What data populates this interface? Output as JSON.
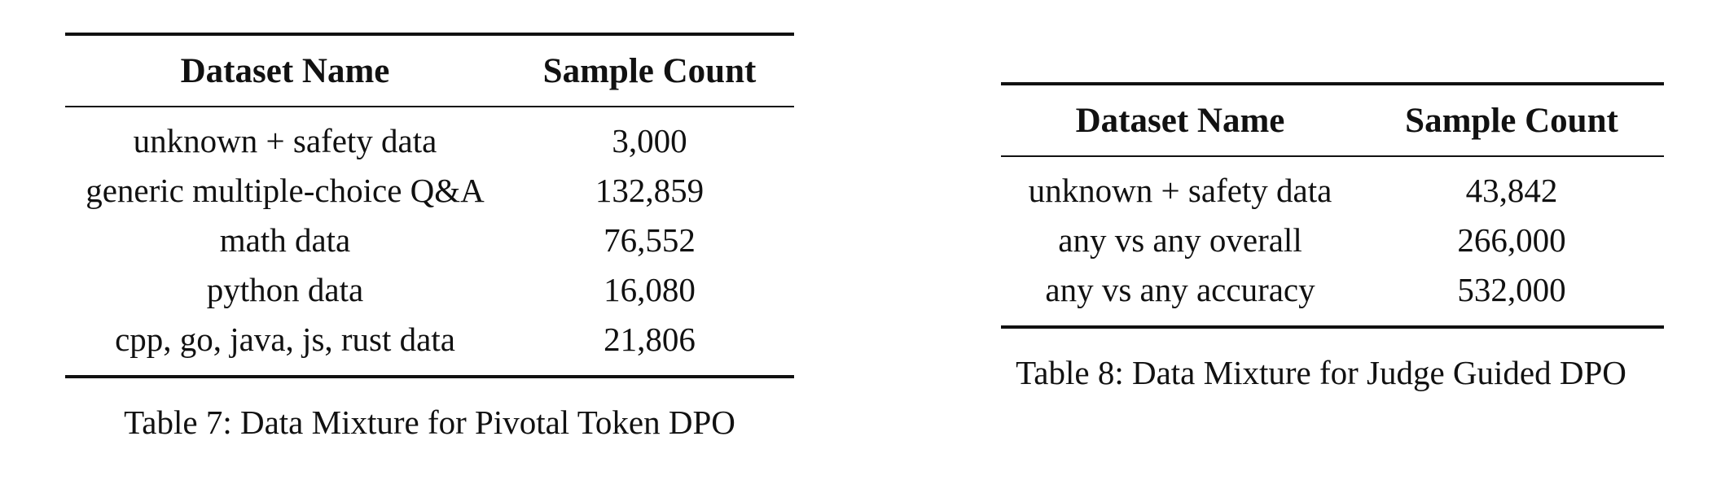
{
  "tables": [
    {
      "headers": [
        "Dataset Name",
        "Sample Count"
      ],
      "rows": [
        [
          "unknown + safety data",
          "3,000"
        ],
        [
          "generic multiple-choice Q&A",
          "132,859"
        ],
        [
          "math data",
          "76,552"
        ],
        [
          "python data",
          "16,080"
        ],
        [
          "cpp, go, java, js, rust data",
          "21,806"
        ]
      ],
      "caption": "Table 7: Data Mixture for Pivotal Token DPO"
    },
    {
      "headers": [
        "Dataset Name",
        "Sample Count"
      ],
      "rows": [
        [
          "unknown + safety data",
          "43,842"
        ],
        [
          "any vs any overall",
          "266,000"
        ],
        [
          "any vs any accuracy",
          "532,000"
        ]
      ],
      "caption": "Table 8: Data Mixture for Judge Guided DPO"
    }
  ]
}
